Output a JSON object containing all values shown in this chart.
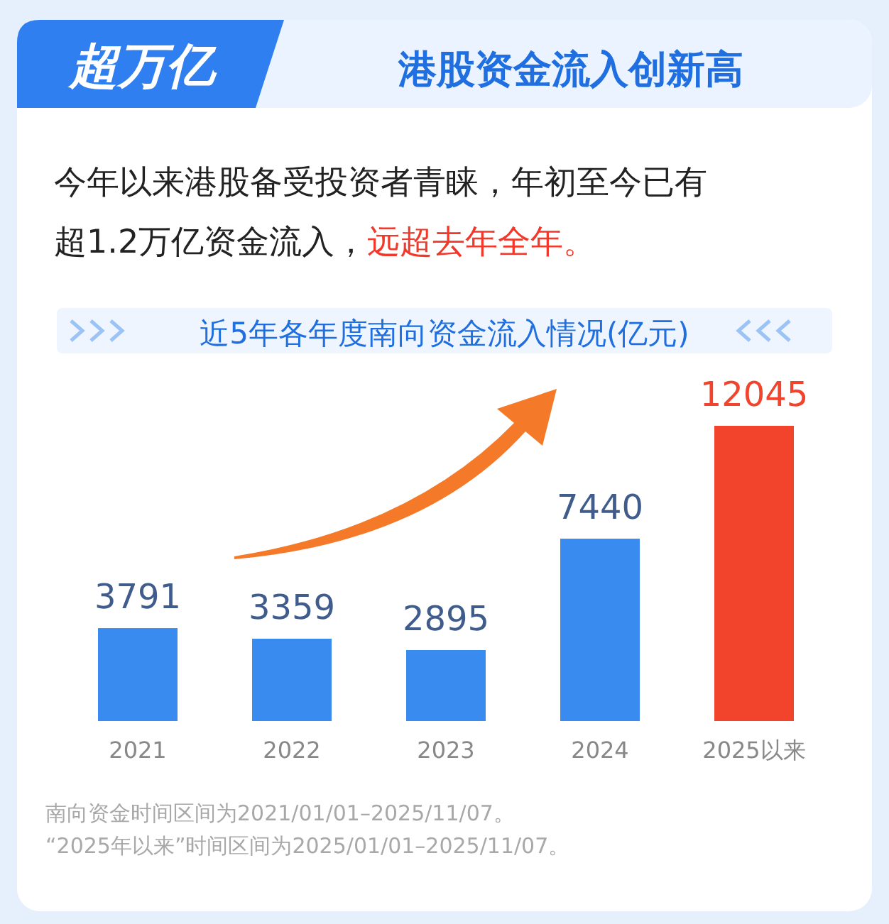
{
  "chart_data": {
    "type": "bar",
    "title": "近5年各年度南向资金流入情况(亿元)",
    "categories": [
      "2021",
      "2022",
      "2023",
      "2024",
      "2025以来"
    ],
    "values": [
      3791,
      3359,
      2895,
      7440,
      12045
    ],
    "colors": [
      "#3a8bf0",
      "#3a8bf0",
      "#3a8bf0",
      "#3a8bf0",
      "#f2432c"
    ],
    "data_labels": true,
    "annotations": [
      "超万亿",
      "港股资金流入创新高",
      "今年以来港股备受投资者青睐，年初至今已有超1.2万亿资金流入，",
      "远超去年全年。",
      "南向资金时间区间为2021/01/01–2025/11/07。",
      "“2025年以来”时间区间为2025/01/01–2025/11/07。"
    ]
  }
}
